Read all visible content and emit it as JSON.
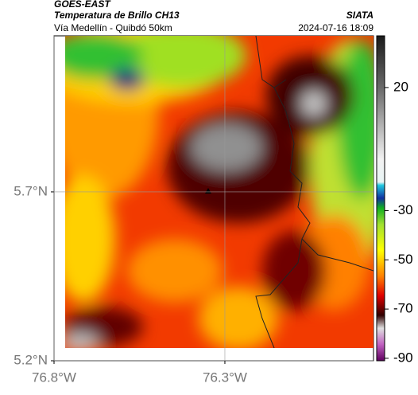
{
  "header": {
    "source": "GOES-EAST",
    "title": "Temperatura de Brillo CH13",
    "subtitle": "Vía Medellín - Quibdó 50km",
    "brand": "SIATA",
    "timestamp": "2024-07-16 18:09"
  },
  "map": {
    "lat_lim": [
      5.2,
      6.162
    ],
    "lon_lim": [
      -76.8,
      -75.865
    ],
    "lat_ticks": [
      {
        "value": 5.7,
        "label": "5.7°N"
      },
      {
        "value": 5.2,
        "label": "5.2°N"
      }
    ],
    "lon_ticks": [
      {
        "value": -76.8,
        "label": "76.8°W"
      },
      {
        "value": -76.3,
        "label": "76.3°W"
      }
    ],
    "colorbar": {
      "lim": [
        -91,
        41
      ],
      "ticks": [
        20,
        -30,
        -50,
        -70,
        -90
      ]
    }
  }
}
